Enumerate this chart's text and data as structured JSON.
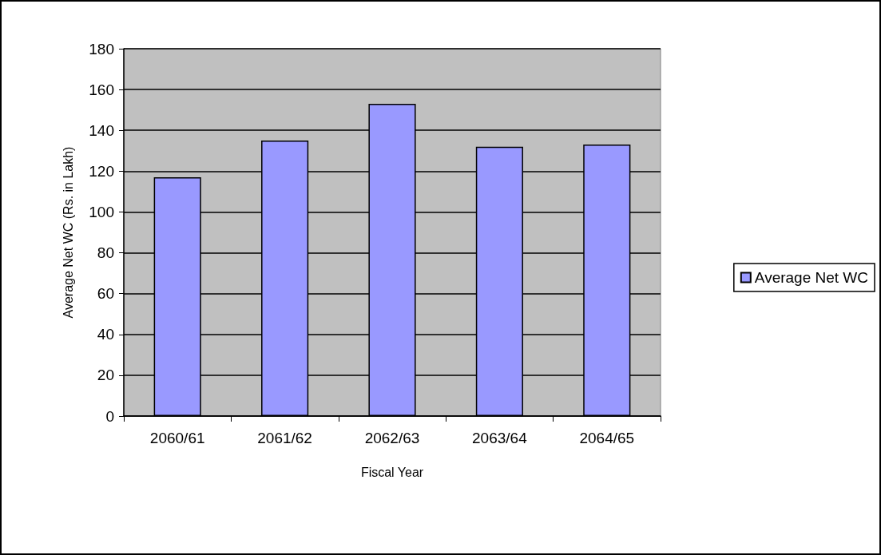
{
  "chart_data": {
    "type": "bar",
    "xlabel": "Fiscal Year",
    "ylabel": "Average Net WC (Rs. in Lakh)",
    "categories": [
      "2060/61",
      "2061/62",
      "2062/63",
      "2063/64",
      "2064/65"
    ],
    "series": [
      {
        "name": "Average Net WC",
        "color": "#9999ff",
        "values": [
          117,
          135,
          153,
          132,
          133
        ]
      }
    ],
    "ylim": [
      0,
      180
    ],
    "yticks": [
      0,
      20,
      40,
      60,
      80,
      100,
      120,
      140,
      160,
      180
    ],
    "grid": "y",
    "legend": "right"
  }
}
